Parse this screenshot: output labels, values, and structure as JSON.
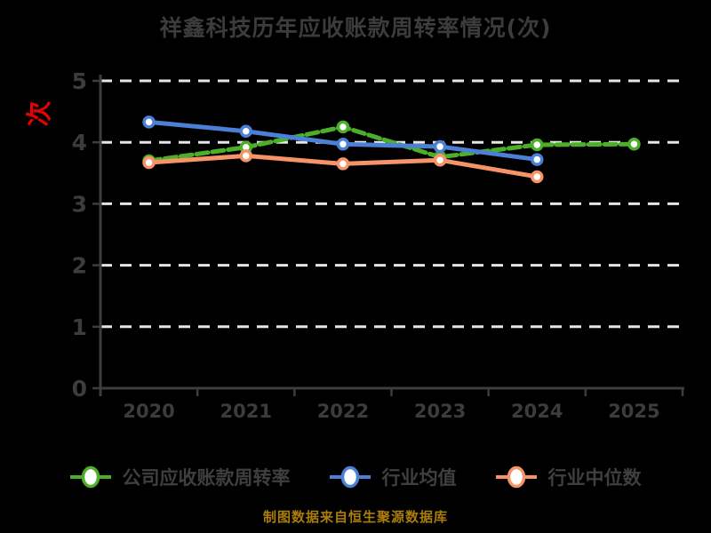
{
  "title": "祥鑫科技历年应收账款周转率情况(次)",
  "y_axis_unit": "次",
  "footer": "制图数据来自恒生聚源数据库",
  "colors": {
    "background": "#000000",
    "title_text": "#3c3c3c",
    "axis": "#3d3d3d",
    "tick_label": "#3c3c3c",
    "gridline": "#e6e6e6",
    "legend_text": "#3f3f3f",
    "footer_text": "#ab7d0a",
    "unit_text": "#e60000",
    "marker_fill": "#ffffff"
  },
  "chart_data": {
    "type": "line",
    "title": "祥鑫科技历年应收账款周转率情况(次)",
    "categories": [
      "2020",
      "2021",
      "2022",
      "2023",
      "2024",
      "2025"
    ],
    "series": [
      {
        "name": "公司应收账款周转率",
        "color": "#4caf2a",
        "line_style": "dashed",
        "values": [
          3.7,
          3.92,
          4.25,
          3.76,
          3.96,
          3.97
        ]
      },
      {
        "name": "行业均值",
        "color": "#4b80d6",
        "line_style": "solid",
        "values": [
          4.33,
          4.18,
          3.97,
          3.93,
          3.72,
          null
        ]
      },
      {
        "name": "行业中位数",
        "color": "#f69468",
        "line_style": "solid",
        "values": [
          3.67,
          3.78,
          3.65,
          3.71,
          3.44,
          null
        ]
      }
    ],
    "xlabel": "",
    "ylabel": "次",
    "ylim": [
      0,
      5
    ],
    "yticks": [
      0,
      1,
      2,
      3,
      4,
      5
    ],
    "grid": "horizontal-dashed",
    "legend_position": "bottom"
  }
}
